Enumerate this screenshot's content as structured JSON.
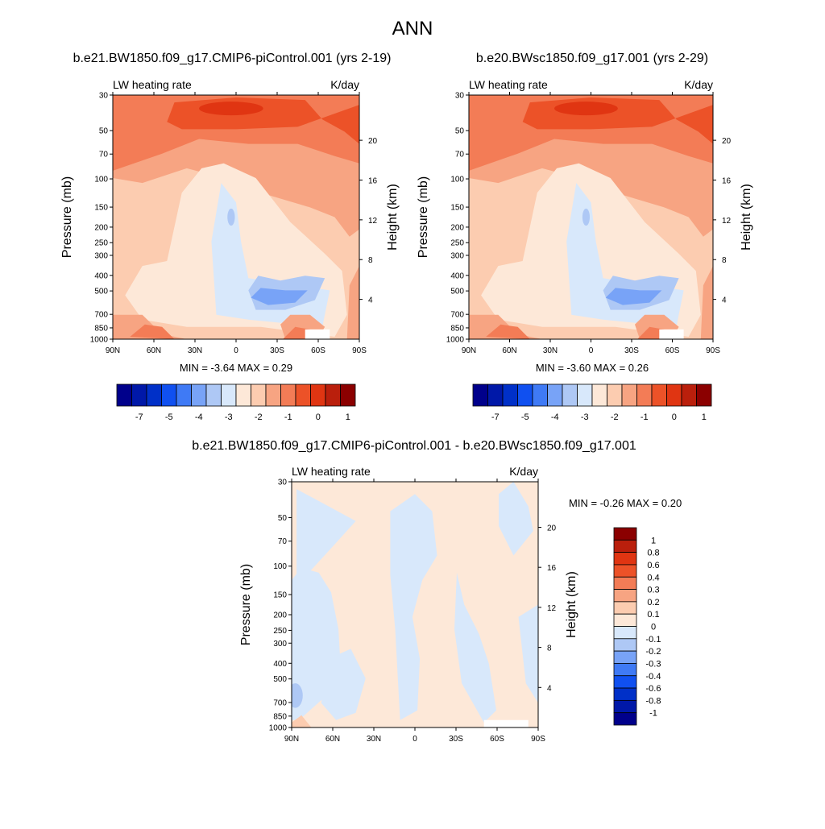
{
  "page": {
    "title": "ANN"
  },
  "colors": {
    "cold_to_warm": [
      "#00008b",
      "#0018a8",
      "#0030c8",
      "#1050f0",
      "#3f7af5",
      "#78a3f7",
      "#aec8f5",
      "#d8e8fb",
      "#fde8d8",
      "#fcccb0",
      "#f7a482",
      "#f37c56",
      "#ec5228",
      "#e03512",
      "#ba1f0c",
      "#8b0000"
    ],
    "diff_scale": [
      "#00008b",
      "#0018a8",
      "#0030c8",
      "#1050f0",
      "#3f7af5",
      "#78a3f7",
      "#aec8f5",
      "#d8e8fb",
      "#fde8d8",
      "#fcccb0",
      "#f7a482",
      "#f37c56",
      "#ec5228",
      "#e03512",
      "#ba1f0c",
      "#8b0000"
    ]
  },
  "chart_data": [
    {
      "type": "heatmap",
      "title": "b.e21.BW1850.f09_g17.CMIP6-piControl.001 (yrs 2-19)",
      "left_label": "LW heating rate",
      "right_label": "K/day",
      "ylabel": "Pressure (mb)",
      "y2label": "Height (km)",
      "x_ticks": [
        "90N",
        "60N",
        "30N",
        "0",
        "30S",
        "60S",
        "90S"
      ],
      "y_ticks": [
        "30",
        "50",
        "70",
        "100",
        "150",
        "200",
        "250",
        "300",
        "400",
        "500",
        "700",
        "850",
        "1000"
      ],
      "y2_ticks": [
        "20",
        "16",
        "12",
        "8",
        "4"
      ],
      "stats": "MIN =  -3.64  MAX =   0.29",
      "colorbar_labels": [
        "-7",
        "-5",
        "-4",
        "-3",
        "-2",
        "-1",
        "0",
        "1"
      ]
    },
    {
      "type": "heatmap",
      "title": "b.e20.BWsc1850.f09_g17.001 (yrs 2-29)",
      "left_label": "LW heating rate",
      "right_label": "K/day",
      "ylabel": "Pressure (mb)",
      "y2label": "Height (km)",
      "x_ticks": [
        "90N",
        "60N",
        "30N",
        "0",
        "30S",
        "60S",
        "90S"
      ],
      "y_ticks": [
        "30",
        "50",
        "70",
        "100",
        "150",
        "200",
        "250",
        "300",
        "400",
        "500",
        "700",
        "850",
        "1000"
      ],
      "y2_ticks": [
        "20",
        "16",
        "12",
        "8",
        "4"
      ],
      "stats": "MIN =  -3.60  MAX =   0.26",
      "colorbar_labels": [
        "-7",
        "-5",
        "-4",
        "-3",
        "-2",
        "-1",
        "0",
        "1"
      ]
    },
    {
      "type": "heatmap",
      "title": "b.e21.BW1850.f09_g17.CMIP6-piControl.001 - b.e20.BWsc1850.f09_g17.001",
      "left_label": "LW heating rate",
      "right_label": "K/day",
      "ylabel": "Pressure (mb)",
      "y2label": "Height (km)",
      "x_ticks": [
        "90N",
        "60N",
        "30N",
        "0",
        "30S",
        "60S",
        "90S"
      ],
      "y_ticks": [
        "30",
        "50",
        "70",
        "100",
        "150",
        "200",
        "250",
        "300",
        "400",
        "500",
        "700",
        "850",
        "1000"
      ],
      "y2_ticks": [
        "20",
        "16",
        "12",
        "8",
        "4"
      ],
      "stats": "MIN =  -0.26  MAX =   0.20",
      "colorbar_labels": [
        "1",
        "0.8",
        "0.6",
        "0.4",
        "0.3",
        "0.2",
        "0.1",
        "0",
        "-0.1",
        "-0.2",
        "-0.3",
        "-0.4",
        "-0.6",
        "-0.8",
        "-1"
      ]
    }
  ]
}
